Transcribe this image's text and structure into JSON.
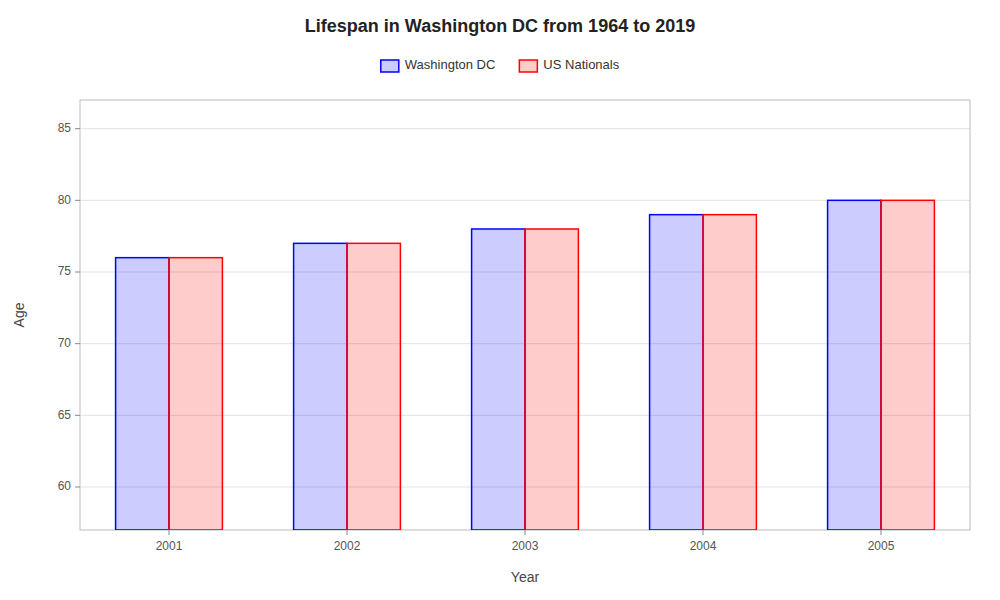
{
  "chart_data": {
    "type": "bar",
    "title": "Lifespan in Washington DC from 1964 to 2019",
    "xlabel": "Year",
    "ylabel": "Age",
    "categories": [
      "2001",
      "2002",
      "2003",
      "2004",
      "2005"
    ],
    "series": [
      {
        "name": "Washington DC",
        "color": "#0000ff",
        "values": [
          76,
          77,
          78,
          79,
          80
        ]
      },
      {
        "name": "US Nationals",
        "color": "#ff0000",
        "values": [
          76,
          77,
          78,
          79,
          80
        ]
      }
    ],
    "ylim": [
      57,
      87
    ],
    "yticks": [
      60,
      65,
      70,
      75,
      80,
      85
    ],
    "grid": true,
    "legend": "top"
  }
}
